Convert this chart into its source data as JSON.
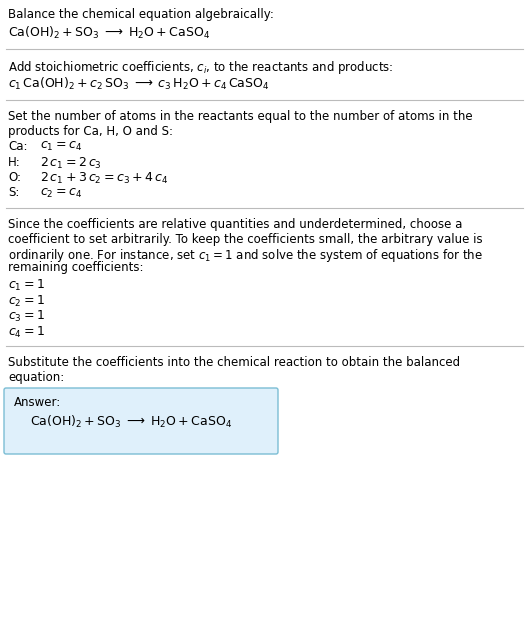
{
  "title_line1": "Balance the chemical equation algebraically:",
  "title_eq": "$\\mathrm{Ca(OH)_2 + SO_3 \\;\\longrightarrow\\; H_2O + CaSO_4}$",
  "section2_intro": "Add stoichiometric coefficients, $c_i$, to the reactants and products:",
  "section2_eq": "$c_1\\,\\mathrm{Ca(OH)_2} + c_2\\,\\mathrm{SO_3} \\;\\longrightarrow\\; c_3\\,\\mathrm{H_2O} + c_4\\,\\mathrm{CaSO_4}$",
  "section3_intro_1": "Set the number of atoms in the reactants equal to the number of atoms in the",
  "section3_intro_2": "products for Ca, H, O and S:",
  "section3_rows": [
    [
      "Ca:",
      "$c_1 = c_4$"
    ],
    [
      "H:",
      "$2\\,c_1 = 2\\,c_3$"
    ],
    [
      "O:",
      "$2\\,c_1 + 3\\,c_2 = c_3 + 4\\,c_4$"
    ],
    [
      "S:",
      "$c_2 = c_4$"
    ]
  ],
  "section4_intro_lines": [
    "Since the coefficients are relative quantities and underdetermined, choose a",
    "coefficient to set arbitrarily. To keep the coefficients small, the arbitrary value is",
    "ordinarily one. For instance, set $c_1 = 1$ and solve the system of equations for the",
    "remaining coefficients:"
  ],
  "section4_lines": [
    "$c_1 = 1$",
    "$c_2 = 1$",
    "$c_3 = 1$",
    "$c_4 = 1$"
  ],
  "section5_intro_1": "Substitute the coefficients into the chemical reaction to obtain the balanced",
  "section5_intro_2": "equation:",
  "answer_label": "Answer:",
  "answer_eq": "$\\mathrm{Ca(OH)_2 + SO_3 \\;\\longrightarrow\\; H_2O + CaSO_4}$",
  "bg_color": "#ffffff",
  "text_color": "#000000",
  "box_bg_color": "#dff0fb",
  "box_edge_color": "#7bbdd4",
  "divider_color": "#bbbbbb",
  "font_size": 8.5,
  "eq_font_size": 9.0
}
